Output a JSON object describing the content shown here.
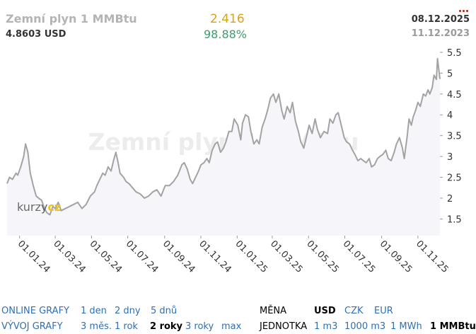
{
  "header": {
    "title": "Zemní plyn 1 MMBtu",
    "price": "4.8603 USD",
    "change": "2.416",
    "change_pct": "98.88%",
    "date_to": "08.12.2025",
    "date_from": "11.12.2023",
    "menu_icon": "more-dots-icon"
  },
  "colors": {
    "line": "#a3a3a3",
    "fill": "#f6f6fa",
    "axis_text": "#333333",
    "change": "#d9a21b",
    "change_pct": "#3d9e6b",
    "link": "#2f6fb3",
    "logo_accent": "#f0c020"
  },
  "watermark": "Zemní plyn 1 MMBtu",
  "logo": "kurzy.cz",
  "chart_data": {
    "type": "area",
    "title": "Zemní plyn 1 MMBtu",
    "xlabel": "",
    "ylabel": "",
    "unit": "USD",
    "ylim": [
      1.1,
      5.6
    ],
    "y_ticks": [
      "1.5",
      "2",
      "2.5",
      "3",
      "3.5",
      "4",
      "4.5",
      "5",
      "5.5"
    ],
    "x_ticks": [
      "01.01.24",
      "01.03.24",
      "01.05.24",
      "01.07.24",
      "01.09.24",
      "01.11.24",
      "01.01.25",
      "01.03.25",
      "01.05.25",
      "01.07.25",
      "01.09.25",
      "01.11.25"
    ],
    "xlim": [
      "2023-12-11",
      "2025-12-08"
    ],
    "grid": false,
    "legend": "none",
    "series": [
      {
        "points": [
          [
            "2023-12-11",
            2.35
          ],
          [
            "2023-12-15",
            2.5
          ],
          [
            "2023-12-20",
            2.45
          ],
          [
            "2023-12-26",
            2.6
          ],
          [
            "2023-12-29",
            2.55
          ],
          [
            "2024-01-03",
            2.75
          ],
          [
            "2024-01-08",
            3.0
          ],
          [
            "2024-01-11",
            3.3
          ],
          [
            "2024-01-15",
            3.1
          ],
          [
            "2024-01-19",
            2.6
          ],
          [
            "2024-01-24",
            2.3
          ],
          [
            "2024-01-29",
            2.05
          ],
          [
            "2024-02-02",
            2.0
          ],
          [
            "2024-02-07",
            1.95
          ],
          [
            "2024-02-12",
            1.75
          ],
          [
            "2024-02-16",
            1.65
          ],
          [
            "2024-02-21",
            1.6
          ],
          [
            "2024-02-26",
            1.8
          ],
          [
            "2024-03-01",
            1.75
          ],
          [
            "2024-03-06",
            1.9
          ],
          [
            "2024-03-11",
            1.7
          ],
          [
            "2024-03-18",
            1.75
          ],
          [
            "2024-03-25",
            1.8
          ],
          [
            "2024-04-01",
            1.85
          ],
          [
            "2024-04-08",
            1.9
          ],
          [
            "2024-04-15",
            1.75
          ],
          [
            "2024-04-22",
            1.85
          ],
          [
            "2024-04-29",
            2.05
          ],
          [
            "2024-05-06",
            2.15
          ],
          [
            "2024-05-10",
            2.3
          ],
          [
            "2024-05-15",
            2.45
          ],
          [
            "2024-05-20",
            2.6
          ],
          [
            "2024-05-24",
            2.55
          ],
          [
            "2024-05-29",
            2.75
          ],
          [
            "2024-06-03",
            2.65
          ],
          [
            "2024-06-07",
            2.9
          ],
          [
            "2024-06-11",
            3.1
          ],
          [
            "2024-06-14",
            2.9
          ],
          [
            "2024-06-18",
            2.6
          ],
          [
            "2024-06-24",
            2.5
          ],
          [
            "2024-06-28",
            2.4
          ],
          [
            "2024-07-03",
            2.35
          ],
          [
            "2024-07-09",
            2.25
          ],
          [
            "2024-07-15",
            2.15
          ],
          [
            "2024-07-22",
            2.1
          ],
          [
            "2024-07-29",
            2.0
          ],
          [
            "2024-08-05",
            2.05
          ],
          [
            "2024-08-12",
            2.15
          ],
          [
            "2024-08-19",
            2.2
          ],
          [
            "2024-08-26",
            2.05
          ],
          [
            "2024-09-02",
            2.3
          ],
          [
            "2024-09-09",
            2.3
          ],
          [
            "2024-09-16",
            2.4
          ],
          [
            "2024-09-23",
            2.55
          ],
          [
            "2024-09-30",
            2.8
          ],
          [
            "2024-10-04",
            2.85
          ],
          [
            "2024-10-09",
            2.7
          ],
          [
            "2024-10-14",
            2.45
          ],
          [
            "2024-10-18",
            2.35
          ],
          [
            "2024-10-23",
            2.5
          ],
          [
            "2024-10-28",
            2.65
          ],
          [
            "2024-11-01",
            2.8
          ],
          [
            "2024-11-06",
            2.85
          ],
          [
            "2024-11-11",
            2.95
          ],
          [
            "2024-11-15",
            2.85
          ],
          [
            "2024-11-20",
            3.15
          ],
          [
            "2024-11-25",
            3.3
          ],
          [
            "2024-11-29",
            3.35
          ],
          [
            "2024-12-04",
            3.1
          ],
          [
            "2024-12-09",
            3.2
          ],
          [
            "2024-12-13",
            3.35
          ],
          [
            "2024-12-18",
            3.6
          ],
          [
            "2024-12-23",
            3.6
          ],
          [
            "2024-12-27",
            3.9
          ],
          [
            "2025-01-02",
            3.75
          ],
          [
            "2025-01-07",
            3.4
          ],
          [
            "2025-01-10",
            3.8
          ],
          [
            "2025-01-15",
            4.0
          ],
          [
            "2025-01-20",
            3.95
          ],
          [
            "2025-01-24",
            3.6
          ],
          [
            "2025-01-29",
            3.3
          ],
          [
            "2025-02-03",
            3.4
          ],
          [
            "2025-02-07",
            3.3
          ],
          [
            "2025-02-12",
            3.7
          ],
          [
            "2025-02-17",
            3.9
          ],
          [
            "2025-02-21",
            4.1
          ],
          [
            "2025-02-26",
            4.4
          ],
          [
            "2025-03-03",
            4.5
          ],
          [
            "2025-03-07",
            4.3
          ],
          [
            "2025-03-12",
            4.5
          ],
          [
            "2025-03-17",
            4.1
          ],
          [
            "2025-03-21",
            3.9
          ],
          [
            "2025-03-26",
            4.2
          ],
          [
            "2025-03-31",
            4.05
          ],
          [
            "2025-04-04",
            4.3
          ],
          [
            "2025-04-09",
            3.85
          ],
          [
            "2025-04-14",
            3.6
          ],
          [
            "2025-04-18",
            3.35
          ],
          [
            "2025-04-23",
            3.2
          ],
          [
            "2025-04-28",
            3.5
          ],
          [
            "2025-05-02",
            3.75
          ],
          [
            "2025-05-07",
            3.55
          ],
          [
            "2025-05-12",
            3.9
          ],
          [
            "2025-05-16",
            3.65
          ],
          [
            "2025-05-21",
            3.45
          ],
          [
            "2025-05-27",
            3.6
          ],
          [
            "2025-06-02",
            3.55
          ],
          [
            "2025-06-06",
            3.9
          ],
          [
            "2025-06-11",
            3.8
          ],
          [
            "2025-06-16",
            4.0
          ],
          [
            "2025-06-20",
            4.05
          ],
          [
            "2025-06-25",
            3.75
          ],
          [
            "2025-06-30",
            3.45
          ],
          [
            "2025-07-04",
            3.35
          ],
          [
            "2025-07-09",
            3.3
          ],
          [
            "2025-07-14",
            3.15
          ],
          [
            "2025-07-18",
            3.05
          ],
          [
            "2025-07-23",
            2.9
          ],
          [
            "2025-07-28",
            2.95
          ],
          [
            "2025-08-01",
            2.9
          ],
          [
            "2025-08-06",
            2.85
          ],
          [
            "2025-08-11",
            2.95
          ],
          [
            "2025-08-15",
            2.75
          ],
          [
            "2025-08-20",
            2.8
          ],
          [
            "2025-08-25",
            2.95
          ],
          [
            "2025-08-29",
            3.0
          ],
          [
            "2025-09-03",
            3.05
          ],
          [
            "2025-09-08",
            3.15
          ],
          [
            "2025-09-12",
            2.95
          ],
          [
            "2025-09-17",
            2.9
          ],
          [
            "2025-09-22",
            3.1
          ],
          [
            "2025-09-26",
            3.3
          ],
          [
            "2025-10-01",
            3.45
          ],
          [
            "2025-10-06",
            3.2
          ],
          [
            "2025-10-09",
            2.95
          ],
          [
            "2025-10-14",
            3.5
          ],
          [
            "2025-10-17",
            3.9
          ],
          [
            "2025-10-21",
            3.75
          ],
          [
            "2025-10-24",
            3.95
          ],
          [
            "2025-10-28",
            4.1
          ],
          [
            "2025-11-01",
            4.3
          ],
          [
            "2025-11-05",
            4.2
          ],
          [
            "2025-11-10",
            4.5
          ],
          [
            "2025-11-14",
            4.45
          ],
          [
            "2025-11-18",
            4.6
          ],
          [
            "2025-11-21",
            4.5
          ],
          [
            "2025-11-25",
            4.65
          ],
          [
            "2025-11-28",
            4.95
          ],
          [
            "2025-12-02",
            4.85
          ],
          [
            "2025-12-04",
            5.35
          ],
          [
            "2025-12-08",
            4.86
          ]
        ]
      }
    ]
  },
  "controls": {
    "row1": {
      "label": "ONLINE GRAFY",
      "items": [
        {
          "text": "1 den",
          "active": false
        },
        {
          "text": "2 dny",
          "active": false
        },
        {
          "text": "5 dnů",
          "active": false
        }
      ]
    },
    "row2": {
      "label": "VÝVOJ GRAFY",
      "items": [
        {
          "text": "3 měs.",
          "active": false
        },
        {
          "text": "1 rok",
          "active": false
        },
        {
          "text": "2 roky",
          "active": true
        },
        {
          "text": "3 roky",
          "active": false
        },
        {
          "text": "max",
          "active": false
        }
      ]
    },
    "currency": {
      "label": "MĚNA",
      "items": [
        {
          "text": "USD",
          "active": true
        },
        {
          "text": "CZK",
          "active": false
        },
        {
          "text": "EUR",
          "active": false
        }
      ]
    },
    "unit": {
      "label": "JEDNOTKA",
      "items": [
        {
          "text": "1 m3",
          "active": false
        },
        {
          "text": "1000 m3",
          "active": false
        },
        {
          "text": "1 MWh",
          "active": false
        },
        {
          "text": "1 MMBtu",
          "active": true
        }
      ]
    }
  }
}
